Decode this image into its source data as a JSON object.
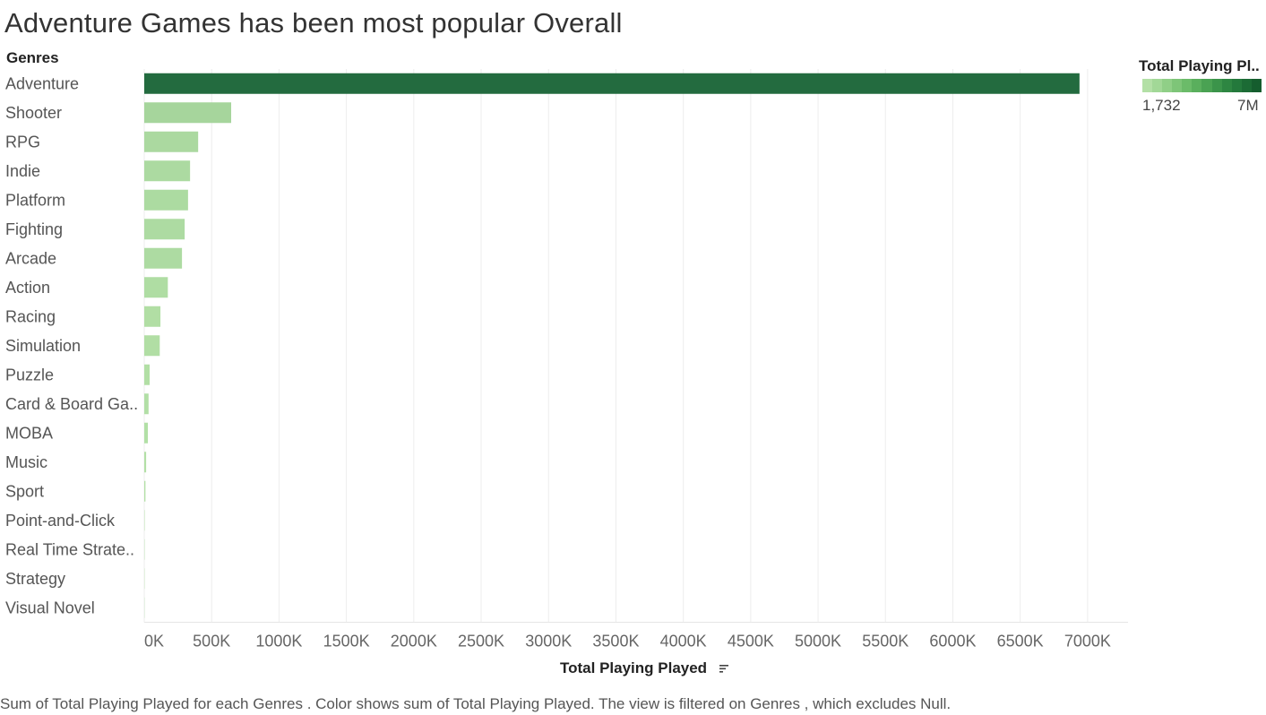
{
  "title": "Adventure Games has been most popular Overall",
  "rows_header": "Genres",
  "legend": {
    "title": "Total Playing Pl..",
    "min_label": "1,732",
    "max_label": "7M",
    "colors": [
      "#b3e0a6",
      "#a2d897",
      "#90cf87",
      "#7ec578",
      "#6bbb69",
      "#5aaf5d",
      "#4aa253",
      "#3b944a",
      "#2e8642",
      "#24793c",
      "#1c6b35",
      "#155d2e"
    ]
  },
  "chart_data": {
    "type": "bar",
    "orientation": "horizontal",
    "categories": [
      "Adventure",
      "Shooter",
      "RPG",
      "Indie",
      "Platform",
      "Fighting",
      "Arcade",
      "Action",
      "Racing",
      "Simulation",
      "Puzzle",
      "Card & Board Ga..",
      "MOBA",
      "Music",
      "Sport",
      "Point-and-Click",
      "Real Time Strate..",
      "Strategy",
      "Visual Novel"
    ],
    "values": [
      6940000,
      645000,
      400000,
      340000,
      325000,
      300000,
      280000,
      175000,
      120000,
      115000,
      40000,
      32000,
      27000,
      14000,
      9000,
      3000,
      2500,
      2000,
      1732
    ],
    "xlabel": "Total Playing Played",
    "xlim": [
      0,
      7300000
    ],
    "xticks": [
      0,
      500000,
      1000000,
      1500000,
      2000000,
      2500000,
      3000000,
      3500000,
      4000000,
      4500000,
      5000000,
      5500000,
      6000000,
      6500000,
      7000000
    ],
    "xtick_labels": [
      "0K",
      "500K",
      "1000K",
      "1500K",
      "2000K",
      "2500K",
      "3000K",
      "3500K",
      "4000K",
      "4500K",
      "5000K",
      "5500K",
      "6000K",
      "6500K",
      "7000K"
    ],
    "color_scale": {
      "low": "#b3e0a6",
      "high": "#236b3f"
    },
    "grid": true
  },
  "axis_title": "Total Playing Played",
  "footer": "Sum of Total Playing Played for each Genres .  Color shows sum of Total Playing Played. The view is filtered on Genres , which excludes Null."
}
